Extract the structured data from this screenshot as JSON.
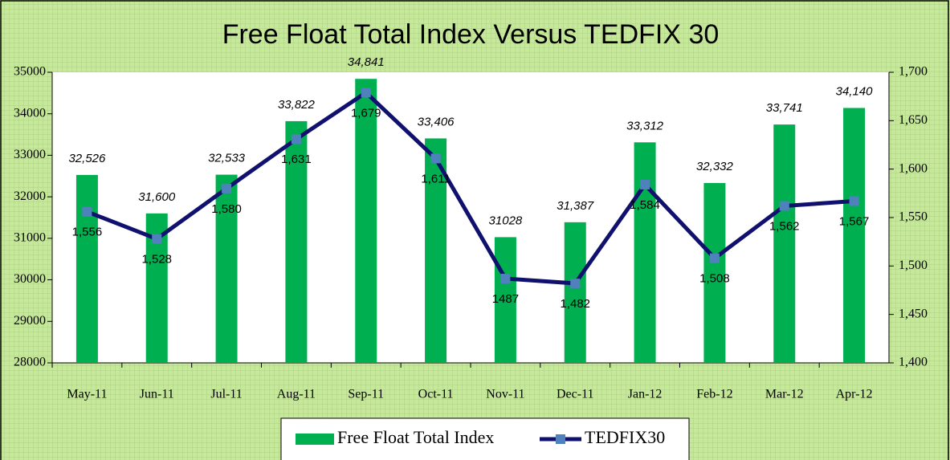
{
  "chart_data": {
    "type": "bar",
    "title": "Free Float Total Index Versus TEDFIX 30",
    "categories": [
      "May-11",
      "Jun-11",
      "Jul-11",
      "Aug-11",
      "Sep-11",
      "Oct-11",
      "Nov-11",
      "Dec-11",
      "Jan-12",
      "Feb-12",
      "Mar-12",
      "Apr-12"
    ],
    "series": [
      {
        "name": "Free Float Total Index",
        "type": "bar",
        "color": "#00b050",
        "values": [
          32526,
          31600,
          32533,
          33822,
          34841,
          33406,
          31028,
          31387,
          33312,
          32332,
          33741,
          34140
        ],
        "value_labels": [
          "32,526",
          "31,600",
          "32,533",
          "33,822",
          "34,841",
          "33,406",
          "31028",
          "31,387",
          "33,312",
          "32,332",
          "33,741",
          "34,140"
        ]
      },
      {
        "name": "TEDFIX30",
        "type": "line",
        "axis": "y2",
        "color": "#10106e",
        "marker_color": "#4f81bd",
        "values": [
          1556,
          1528,
          1580,
          1631,
          1679,
          1611,
          1487,
          1482,
          1584,
          1508,
          1562,
          1567
        ],
        "value_labels": [
          "1,556",
          "1,528",
          "1,580",
          "1,631",
          "1,679",
          "1,611",
          "1487",
          "1,482",
          "1,584",
          "1,508",
          "1,562",
          "1,567"
        ]
      }
    ],
    "ylim": [
      28000,
      35000
    ],
    "yticks": [
      28000,
      29000,
      30000,
      31000,
      32000,
      33000,
      34000,
      35000
    ],
    "y2lim": [
      1400,
      1700
    ],
    "y2ticks": [
      {
        "value": 1400,
        "label": "1,400"
      },
      {
        "value": 1450,
        "label": "1,450"
      },
      {
        "value": 1500,
        "label": "1,500"
      },
      {
        "value": 1550,
        "label": "1,550"
      },
      {
        "value": 1600,
        "label": "1,600"
      },
      {
        "value": 1650,
        "label": "1,650"
      },
      {
        "value": 1700,
        "label": "1,700"
      }
    ],
    "legend": "bottom"
  }
}
